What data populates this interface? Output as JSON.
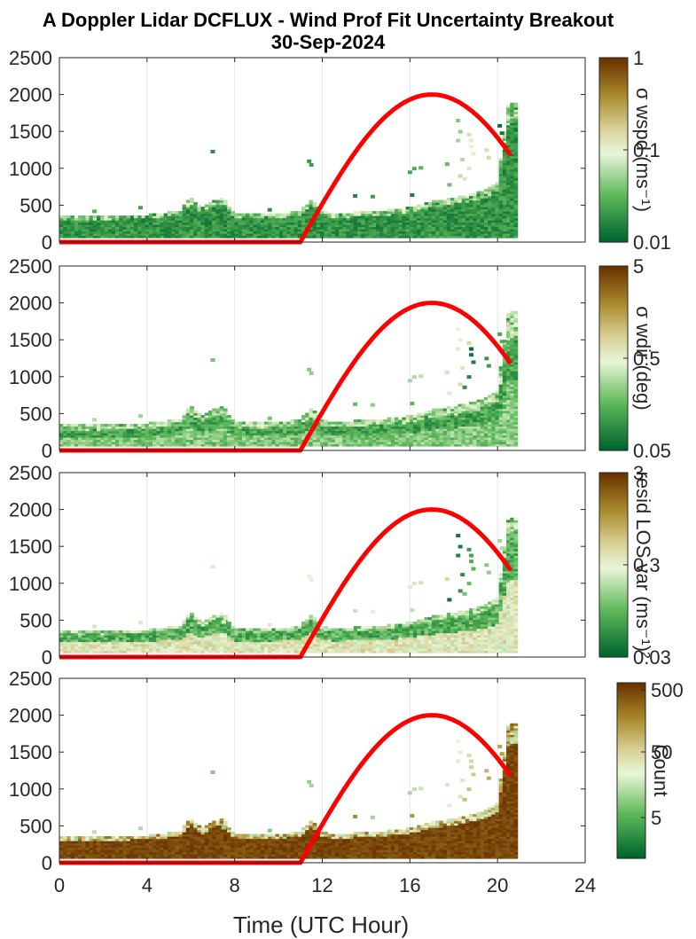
{
  "title_line1": "A Doppler Lidar DCFLUX - Wind Prof Fit Uncertainty Breakout",
  "title_line2": "30-Sep-2024",
  "xlabel": "Time (UTC Hour)",
  "colors": {
    "curve": "#ff0000",
    "dark_green": "#00662e",
    "brown": "#6b3300",
    "grid": "#e6e6e6"
  },
  "chart_data": [
    {
      "type": "heatmap",
      "name": "panel-wspd",
      "xlim": [
        0,
        24
      ],
      "ylim": [
        0,
        2500
      ],
      "xticks": [
        0,
        4,
        8,
        12,
        16,
        20,
        24
      ],
      "yticks": [
        0,
        500,
        1000,
        1500,
        2000,
        2500
      ],
      "grid": "vertical",
      "colorbar": {
        "label": "σ wspd (ms⁻¹)",
        "ticks": [
          "1",
          "0.1",
          "0.01"
        ],
        "scale": "log",
        "range": [
          0.01,
          1
        ]
      },
      "dominant_level": 0.12,
      "overlay_curve": [
        [
          0,
          0
        ],
        [
          11,
          0
        ],
        [
          11.5,
          140
        ],
        [
          12,
          480
        ],
        [
          13,
          960
        ],
        [
          14,
          1390
        ],
        [
          15,
          1730
        ],
        [
          16,
          1940
        ],
        [
          17,
          2000
        ],
        [
          18,
          1940
        ],
        [
          19,
          1730
        ],
        [
          20,
          1390
        ],
        [
          20.7,
          1080
        ]
      ]
    },
    {
      "type": "heatmap",
      "name": "panel-wdir",
      "xlim": [
        0,
        24
      ],
      "ylim": [
        0,
        2500
      ],
      "xticks": [
        0,
        4,
        8,
        12,
        16,
        20,
        24
      ],
      "yticks": [
        0,
        500,
        1000,
        1500,
        2000,
        2500
      ],
      "grid": "vertical",
      "colorbar": {
        "label": "σ wdir (deg)",
        "ticks": [
          "5",
          "0.5",
          "0.05"
        ],
        "scale": "log",
        "range": [
          0.05,
          5
        ]
      },
      "dominant_level": 0.18,
      "overlay_curve": [
        [
          0,
          0
        ],
        [
          11,
          0
        ],
        [
          11.5,
          140
        ],
        [
          12,
          480
        ],
        [
          13,
          960
        ],
        [
          14,
          1390
        ],
        [
          15,
          1730
        ],
        [
          16,
          1940
        ],
        [
          17,
          2000
        ],
        [
          18,
          1940
        ],
        [
          19,
          1730
        ],
        [
          20,
          1390
        ],
        [
          20.7,
          1080
        ]
      ]
    },
    {
      "type": "heatmap",
      "name": "panel-resid",
      "xlim": [
        0,
        24
      ],
      "ylim": [
        0,
        2500
      ],
      "xticks": [
        0,
        4,
        8,
        12,
        16,
        20,
        24
      ],
      "yticks": [
        0,
        500,
        1000,
        1500,
        2000,
        2500
      ],
      "grid": "vertical",
      "colorbar": {
        "label": "resid LOS var (ms⁻¹)²",
        "ticks": [
          "3",
          "0.3",
          "0.03"
        ],
        "scale": "log",
        "range": [
          0.03,
          3
        ]
      },
      "dominant_level": 0.35,
      "overlay_curve": [
        [
          0,
          0
        ],
        [
          11,
          0
        ],
        [
          11.5,
          140
        ],
        [
          12,
          480
        ],
        [
          13,
          960
        ],
        [
          14,
          1390
        ],
        [
          15,
          1730
        ],
        [
          16,
          1940
        ],
        [
          17,
          2000
        ],
        [
          18,
          1940
        ],
        [
          19,
          1730
        ],
        [
          20,
          1390
        ],
        [
          20.7,
          1080
        ]
      ]
    },
    {
      "type": "heatmap",
      "name": "panel-count",
      "xlim": [
        0,
        24
      ],
      "ylim": [
        0,
        2500
      ],
      "xticks": [
        0,
        4,
        8,
        12,
        16,
        20,
        24
      ],
      "yticks": [
        0,
        500,
        1000,
        1500,
        2000,
        2500
      ],
      "grid": "vertical",
      "colorbar": {
        "label": "Count",
        "ticks": [
          "500",
          "50",
          "5"
        ],
        "scale": "log",
        "range": [
          1,
          500
        ]
      },
      "dominant_level": 0.95,
      "overlay_curve": [
        [
          0,
          0
        ],
        [
          11,
          0
        ],
        [
          11.5,
          140
        ],
        [
          12,
          480
        ],
        [
          13,
          960
        ],
        [
          14,
          1390
        ],
        [
          15,
          1730
        ],
        [
          16,
          1940
        ],
        [
          17,
          2000
        ],
        [
          18,
          1940
        ],
        [
          19,
          1730
        ],
        [
          20,
          1390
        ],
        [
          20.7,
          1080
        ]
      ]
    }
  ],
  "echo_top_profile": [
    [
      0,
      330
    ],
    [
      0.5,
      335
    ],
    [
      1,
      330
    ],
    [
      1.5,
      340
    ],
    [
      2,
      330
    ],
    [
      2.5,
      345
    ],
    [
      3,
      350
    ],
    [
      3.5,
      360
    ],
    [
      4,
      360
    ],
    [
      4.5,
      380
    ],
    [
      5,
      390
    ],
    [
      5.5,
      410
    ],
    [
      6,
      600
    ],
    [
      6.5,
      440
    ],
    [
      7,
      560
    ],
    [
      7.5,
      580
    ],
    [
      8,
      360
    ],
    [
      8.5,
      380
    ],
    [
      9,
      360
    ],
    [
      9.5,
      370
    ],
    [
      10,
      380
    ],
    [
      10.5,
      390
    ],
    [
      11,
      420
    ],
    [
      11.5,
      560
    ],
    [
      12,
      400
    ],
    [
      12.5,
      380
    ],
    [
      13,
      380
    ],
    [
      13.5,
      390
    ],
    [
      14,
      400
    ],
    [
      14.5,
      420
    ],
    [
      15,
      420
    ],
    [
      15.5,
      440
    ],
    [
      16,
      460
    ],
    [
      16.5,
      500
    ],
    [
      17,
      540
    ],
    [
      17.5,
      560
    ],
    [
      18,
      590
    ],
    [
      18.5,
      620
    ],
    [
      19,
      650
    ],
    [
      19.5,
      700
    ],
    [
      20,
      800
    ],
    [
      20.5,
      1880
    ],
    [
      20.7,
      1880
    ]
  ],
  "sparse_cells": [
    [
      6.9,
      1230
    ],
    [
      11.3,
      1100
    ],
    [
      11.4,
      1050
    ],
    [
      15.9,
      950
    ],
    [
      16.1,
      1000
    ],
    [
      16.4,
      1010
    ],
    [
      17.6,
      1060
    ],
    [
      17.7,
      780
    ],
    [
      18.1,
      1650
    ],
    [
      18.2,
      1500
    ],
    [
      18.1,
      1380
    ],
    [
      18.3,
      1120
    ],
    [
      18.2,
      900
    ],
    [
      18.6,
      1460
    ],
    [
      18.7,
      1380
    ],
    [
      18.7,
      1300
    ],
    [
      18.8,
      1200
    ],
    [
      18.6,
      1000
    ],
    [
      18.4,
      860
    ],
    [
      19.4,
      1250
    ],
    [
      19.5,
      1150
    ],
    [
      20.0,
      1580
    ],
    [
      20.1,
      1480
    ],
    [
      16.0,
      640
    ],
    [
      13.4,
      630
    ],
    [
      9.5,
      440
    ],
    [
      7.4,
      480
    ],
    [
      14.2,
      620
    ],
    [
      3.6,
      470
    ],
    [
      1.5,
      420
    ]
  ]
}
